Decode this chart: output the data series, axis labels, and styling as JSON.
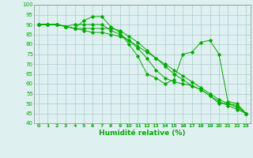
{
  "x": [
    0,
    1,
    2,
    3,
    4,
    5,
    6,
    7,
    8,
    9,
    10,
    11,
    12,
    13,
    14,
    15,
    16,
    17,
    18,
    19,
    20,
    21,
    22,
    23
  ],
  "line1": [
    90,
    90,
    90,
    89,
    88,
    92,
    94,
    94,
    89,
    86,
    80,
    74,
    65,
    63,
    60,
    62,
    75,
    76,
    81,
    82,
    75,
    51,
    50,
    45
  ],
  "line2": [
    90,
    90,
    90,
    89,
    88,
    88,
    88,
    88,
    88,
    87,
    84,
    81,
    77,
    73,
    69,
    65,
    62,
    59,
    57,
    54,
    51,
    49,
    47,
    45
  ],
  "line3": [
    90,
    90,
    90,
    89,
    88,
    87,
    86,
    86,
    85,
    84,
    82,
    79,
    76,
    73,
    70,
    67,
    64,
    61,
    58,
    55,
    52,
    50,
    48,
    45
  ],
  "line4": [
    90,
    90,
    90,
    89,
    90,
    90,
    90,
    90,
    87,
    85,
    82,
    78,
    73,
    67,
    63,
    61,
    60,
    59,
    57,
    54,
    50,
    50,
    49,
    45
  ],
  "bg_color": "#dff0f0",
  "grid_color": "#aacccc",
  "line_color": "#00aa00",
  "xlabel": "Humidité relative (%)",
  "xlabel_color": "#00aa00",
  "xlabel_fontsize": 6.5,
  "tick_color": "#00aa00",
  "ytick_fontsize": 5.0,
  "xtick_fontsize": 4.5,
  "ylim": [
    40,
    100
  ],
  "yticks": [
    40,
    45,
    50,
    55,
    60,
    65,
    70,
    75,
    80,
    85,
    90,
    95,
    100
  ],
  "xlim": [
    -0.5,
    23.5
  ],
  "xticks": [
    0,
    1,
    2,
    3,
    4,
    5,
    6,
    7,
    8,
    9,
    10,
    11,
    12,
    13,
    14,
    15,
    16,
    17,
    18,
    19,
    20,
    21,
    22,
    23
  ]
}
